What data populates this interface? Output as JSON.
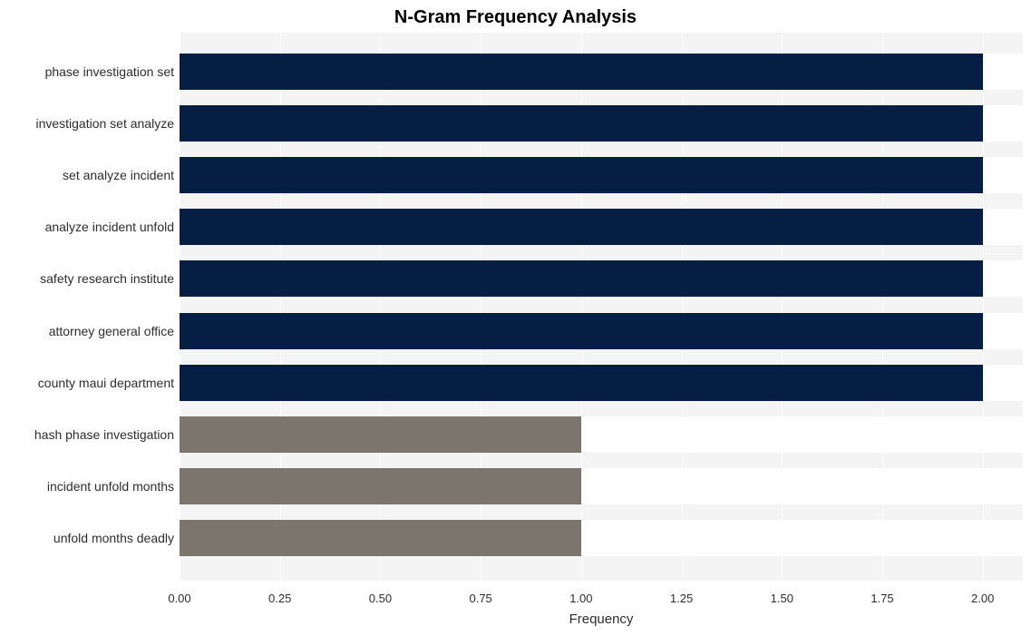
{
  "chart": {
    "type": "bar-horizontal",
    "title": "N-Gram Frequency Analysis",
    "title_fontsize": 20,
    "title_color": "#000000",
    "background_color": "#ffffff",
    "plot_background_color": "#ffffff",
    "band_color": "#f4f4f4",
    "grid_line_color": "#ffffff",
    "xlabel": "Frequency",
    "xlabel_fontsize": 15,
    "xlabel_color": "#2d2d2d",
    "xlim": [
      0.0,
      2.1
    ],
    "xticks": [
      0.0,
      0.25,
      0.5,
      0.75,
      1.0,
      1.25,
      1.5,
      1.75,
      2.0
    ],
    "xtick_labels": [
      "0.00",
      "0.25",
      "0.50",
      "0.75",
      "1.00",
      "1.25",
      "1.50",
      "1.75",
      "2.00"
    ],
    "tick_fontsize": 13,
    "tick_color": "#2d2d2d",
    "ytick_fontsize": 14,
    "bar_height_ratio": 0.7,
    "categories": [
      "phase investigation set",
      "investigation set analyze",
      "set analyze incident",
      "analyze incident unfold",
      "safety research institute",
      "attorney general office",
      "county maui department",
      "hash phase investigation",
      "incident unfold months",
      "unfold months deadly"
    ],
    "values": [
      2,
      2,
      2,
      2,
      2,
      2,
      2,
      1,
      1,
      1
    ],
    "bar_colors": [
      "#061e43",
      "#061e43",
      "#061e43",
      "#061e43",
      "#061e43",
      "#061e43",
      "#061e43",
      "#7b756d",
      "#7b756d",
      "#7b756d"
    ]
  }
}
